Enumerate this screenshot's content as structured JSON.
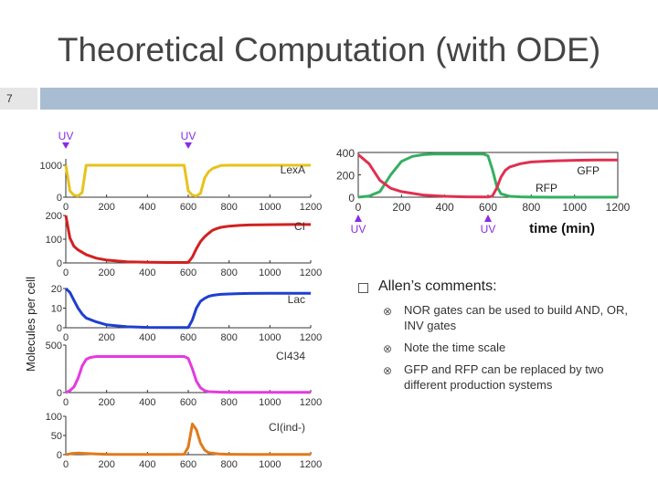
{
  "slide": {
    "title": "Theoretical Computation (with ODE)",
    "number": "7"
  },
  "comments": {
    "heading": "Allen’s comments:",
    "items": [
      "NOR gates can be used to build AND, OR, INV gates",
      "Note the time scale",
      "GFP and RFP can be replaced by two different production systems"
    ]
  },
  "colors": {
    "lexa": "#e8c21c",
    "ci": "#d42020",
    "lac": "#1f3fd0",
    "ci434": "#e43ae0",
    "ciind": "#e07a1a",
    "gfp": "#33b060",
    "rfp": "#e03050",
    "uv": "#8a2be2",
    "axis": "#333333",
    "bar": "#a9bdd2"
  },
  "chart_data": [
    {
      "type": "line",
      "ylabel": "Molecules per cell",
      "xticks": [
        "0",
        "200",
        "400",
        "600",
        "800",
        "1000",
        "1200"
      ],
      "markers": [
        {
          "label": "UV",
          "x": 0
        },
        {
          "label": "UV",
          "x": 600
        }
      ],
      "panels": [
        {
          "name": "LexA",
          "color": "lexa",
          "ylim": [
            0,
            1200
          ],
          "yticks": [
            "0",
            "1000"
          ],
          "x": [
            0,
            20,
            40,
            60,
            80,
            100,
            150,
            200,
            300,
            400,
            500,
            580,
            600,
            620,
            640,
            660,
            680,
            700,
            720,
            740,
            760,
            800,
            900,
            1000,
            1100,
            1200
          ],
          "y": [
            1000,
            200,
            60,
            40,
            150,
            1000,
            1000,
            1000,
            1000,
            1000,
            1000,
            1000,
            200,
            60,
            40,
            120,
            600,
            800,
            900,
            950,
            990,
            1000,
            1000,
            1000,
            1000,
            1000
          ]
        },
        {
          "name": "CI",
          "color": "ci",
          "ylim": [
            0,
            200
          ],
          "yticks": [
            "0",
            "100",
            "200"
          ],
          "x": [
            0,
            20,
            40,
            60,
            80,
            100,
            150,
            200,
            300,
            400,
            500,
            600,
            620,
            640,
            660,
            680,
            700,
            720,
            740,
            760,
            800,
            850,
            900,
            1000,
            1100,
            1200
          ],
          "y": [
            200,
            105,
            70,
            55,
            45,
            35,
            20,
            12,
            5,
            3,
            2,
            2,
            25,
            60,
            90,
            110,
            125,
            138,
            145,
            150,
            155,
            158,
            160,
            161,
            162,
            162
          ]
        },
        {
          "name": "Lac",
          "color": "lac",
          "ylim": [
            0,
            20
          ],
          "yticks": [
            "0",
            "10",
            "20"
          ],
          "x": [
            0,
            20,
            40,
            60,
            80,
            100,
            150,
            200,
            300,
            400,
            500,
            600,
            620,
            640,
            660,
            680,
            700,
            720,
            740,
            760,
            800,
            850,
            900,
            1000,
            1100,
            1200
          ],
          "y": [
            20,
            18,
            14,
            10,
            7,
            5,
            3,
            1.5,
            0.5,
            0.2,
            0.1,
            0.1,
            4,
            10,
            13.5,
            15,
            16,
            16.5,
            16.8,
            17,
            17.2,
            17.4,
            17.5,
            17.6,
            17.6,
            17.6
          ]
        },
        {
          "name": "CI434",
          "color": "ci434",
          "ylim": [
            0,
            500
          ],
          "yticks": [
            "0",
            "500"
          ],
          "x": [
            0,
            20,
            40,
            60,
            80,
            100,
            120,
            150,
            200,
            300,
            400,
            500,
            580,
            600,
            620,
            640,
            660,
            680,
            700,
            750,
            800,
            900,
            1000,
            1100,
            1200
          ],
          "y": [
            0,
            20,
            60,
            150,
            280,
            350,
            370,
            380,
            380,
            380,
            380,
            380,
            380,
            360,
            250,
            120,
            50,
            20,
            10,
            5,
            3,
            2,
            2,
            2,
            2
          ]
        },
        {
          "name": "CI(ind-)",
          "color": "ciind",
          "ylim": [
            0,
            100
          ],
          "yticks": [
            "0",
            "50",
            "100"
          ],
          "x": [
            0,
            30,
            60,
            100,
            150,
            200,
            300,
            400,
            500,
            580,
            600,
            620,
            640,
            660,
            680,
            700,
            750,
            800,
            900,
            1000,
            1100,
            1200
          ],
          "y": [
            0,
            3,
            4,
            3,
            2,
            1,
            0.5,
            0.5,
            0.5,
            1,
            20,
            80,
            65,
            30,
            12,
            5,
            2,
            1,
            0.5,
            0.5,
            0.5,
            0.5
          ]
        }
      ]
    },
    {
      "type": "line",
      "xlabel": "time (min)",
      "xlim": [
        0,
        1200
      ],
      "ylim": [
        0,
        400
      ],
      "xticks": [
        "0",
        "200",
        "400",
        "600",
        "800",
        "1000",
        "1200"
      ],
      "yticks": [
        "0",
        "200",
        "400"
      ],
      "markers": [
        {
          "label": "UV",
          "x": 0
        },
        {
          "label": "UV",
          "x": 600
        }
      ],
      "series": [
        {
          "name": "GFP",
          "color": "gfp",
          "x": [
            0,
            50,
            100,
            150,
            200,
            250,
            300,
            350,
            400,
            500,
            580,
            600,
            620,
            640,
            660,
            700,
            750,
            800,
            900,
            1000,
            1100,
            1200
          ],
          "y": [
            0,
            10,
            50,
            200,
            320,
            365,
            380,
            385,
            385,
            385,
            385,
            370,
            250,
            100,
            30,
            8,
            3,
            1,
            0,
            0,
            0,
            0
          ]
        },
        {
          "name": "RFP",
          "color": "rfp",
          "x": [
            0,
            50,
            100,
            150,
            200,
            300,
            400,
            500,
            600,
            620,
            640,
            660,
            680,
            700,
            750,
            800,
            900,
            1000,
            1100,
            1200
          ],
          "y": [
            380,
            300,
            150,
            80,
            50,
            20,
            8,
            3,
            2,
            10,
            80,
            180,
            240,
            270,
            300,
            315,
            325,
            330,
            332,
            333
          ]
        }
      ]
    }
  ]
}
